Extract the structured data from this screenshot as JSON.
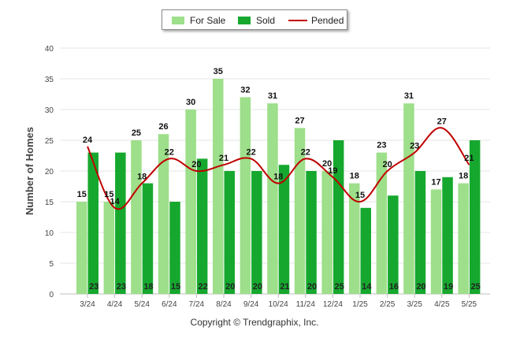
{
  "chart_data": {
    "type": "bar",
    "ylabel": "Number of Homes",
    "xlabel": "",
    "ylim": [
      0,
      40
    ],
    "yticks": [
      0,
      5,
      10,
      15,
      20,
      25,
      30,
      35,
      40
    ],
    "grid": true,
    "legend_position": "top-center",
    "categories": [
      "3/24",
      "4/24",
      "5/24",
      "6/24",
      "7/24",
      "8/24",
      "9/24",
      "10/24",
      "11/24",
      "12/24",
      "1/25",
      "2/25",
      "3/25",
      "4/25",
      "5/25"
    ],
    "series": [
      {
        "name": "For Sale",
        "type": "bar",
        "color": "#9ddf8a",
        "values": [
          15,
          15,
          25,
          26,
          30,
          35,
          32,
          31,
          27,
          20,
          18,
          23,
          31,
          17,
          18
        ]
      },
      {
        "name": "Sold",
        "type": "bar",
        "color": "#16a82e",
        "values": [
          23,
          23,
          18,
          15,
          22,
          20,
          20,
          21,
          20,
          25,
          14,
          16,
          20,
          19,
          25
        ]
      },
      {
        "name": "Pended",
        "type": "line",
        "color": "#c00000",
        "values": [
          24,
          14,
          18,
          22,
          20,
          21,
          22,
          18,
          22,
          19,
          15,
          20,
          23,
          27,
          21
        ]
      }
    ],
    "copyright": "Copyright © Trendgraphix, Inc."
  }
}
